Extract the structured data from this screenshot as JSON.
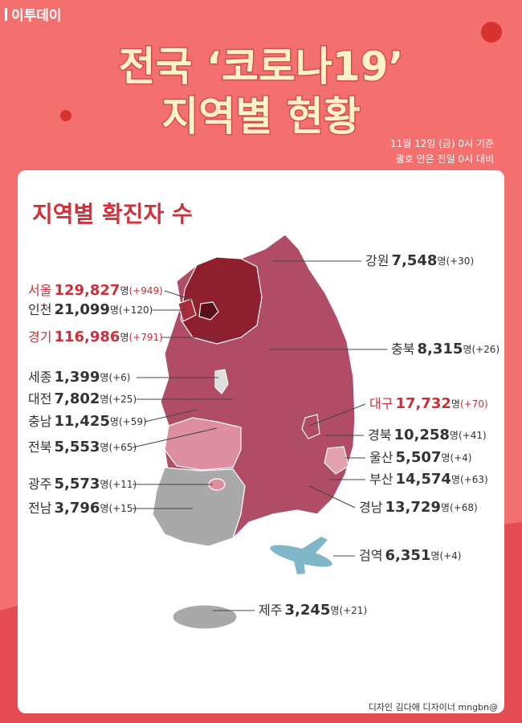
{
  "logo": "이투데이",
  "header": {
    "title_line1": "전국 ‘코로나19’",
    "title_line2": "지역별 현황",
    "date_note": "11월 12일 (금) 0시 기준",
    "compare_note": "괄호 안은 전일 0시 대비"
  },
  "card_title": "지역별 확진자 수",
  "unit": "명",
  "regions": [
    {
      "name": "강원",
      "count": "7,548",
      "change": "(+30)"
    },
    {
      "name": "서울",
      "count": "129,827",
      "change": "(+949)"
    },
    {
      "name": "인천",
      "count": "21,099",
      "change": "(+120)"
    },
    {
      "name": "경기",
      "count": "116,986",
      "change": "(+791)"
    },
    {
      "name": "충북",
      "count": "8,315",
      "change": "(+26)"
    },
    {
      "name": "세종",
      "count": "1,399",
      "change": "(+6)"
    },
    {
      "name": "대전",
      "count": "7,802",
      "change": "(+25)"
    },
    {
      "name": "충남",
      "count": "11,425",
      "change": "(+59)"
    },
    {
      "name": "대구",
      "count": "17,732",
      "change": "(+70)"
    },
    {
      "name": "경북",
      "count": "10,258",
      "change": "(+41)"
    },
    {
      "name": "전북",
      "count": "5,553",
      "change": "(+65)"
    },
    {
      "name": "울산",
      "count": "5,507",
      "change": "(+4)"
    },
    {
      "name": "광주",
      "count": "5,573",
      "change": "(+11)"
    },
    {
      "name": "부산",
      "count": "14,574",
      "change": "(+63)"
    },
    {
      "name": "전남",
      "count": "3,796",
      "change": "(+15)"
    },
    {
      "name": "경남",
      "count": "13,729",
      "change": "(+68)"
    },
    {
      "name": "검역",
      "count": "6,351",
      "change": "(+4)"
    },
    {
      "name": "제주",
      "count": "3,245",
      "change": "(+21)"
    }
  ],
  "credit": "디자인 김다애 디자이너 mngbn@"
}
